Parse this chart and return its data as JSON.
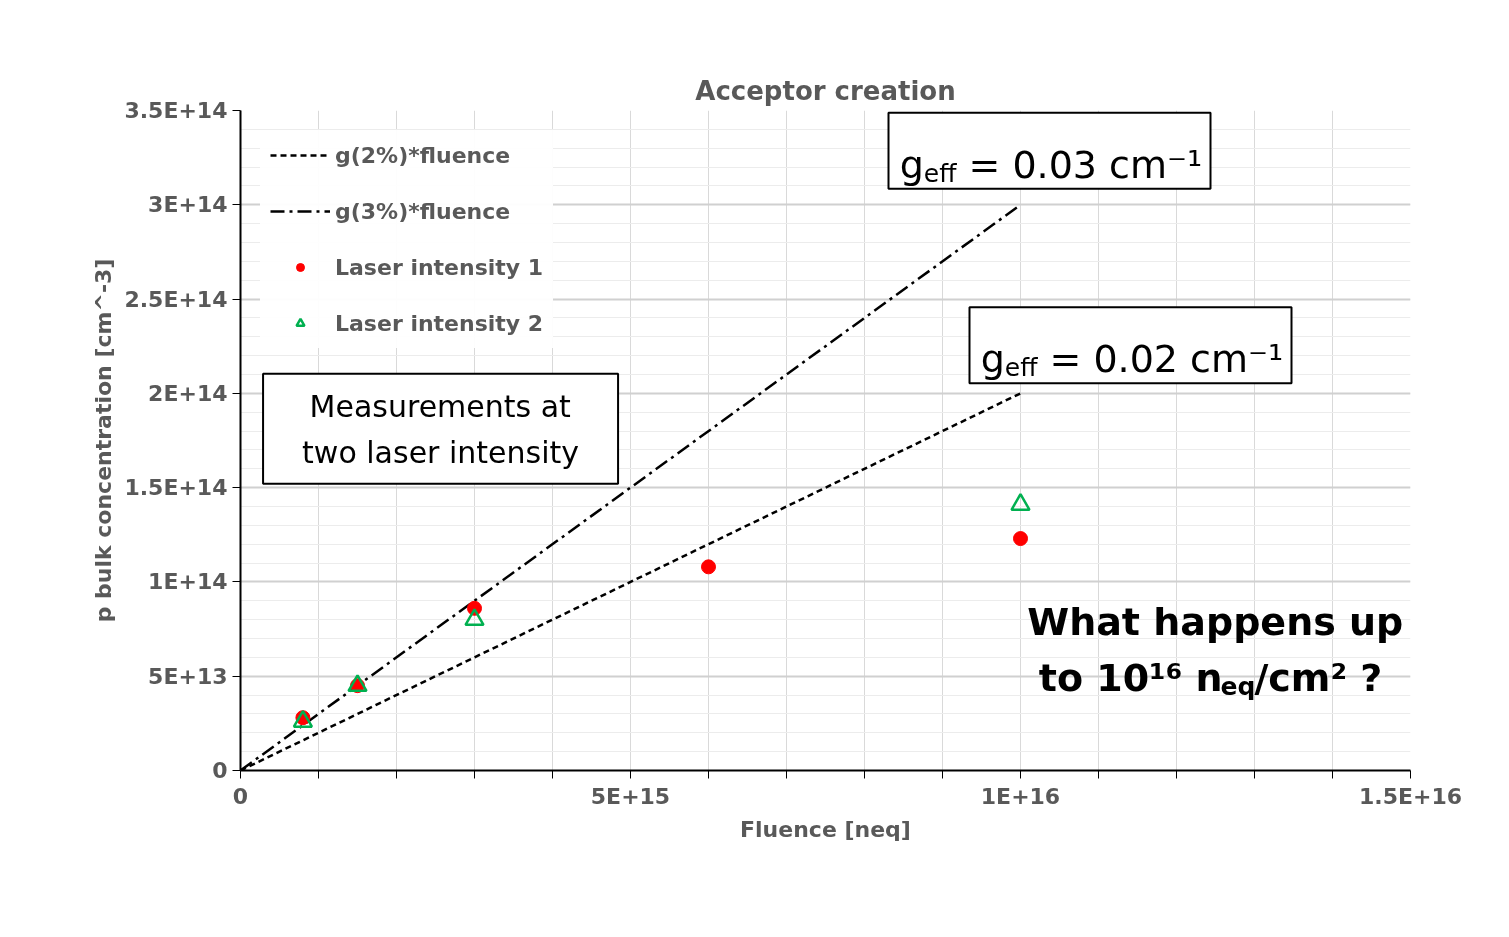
{
  "chart_data": {
    "type": "scatter",
    "title": "Acceptor creation",
    "xlabel": "Fluence [neq]",
    "ylabel": "p bulk concentration [cm^-3]",
    "xlim": [
      0,
      1.5e+16
    ],
    "ylim": [
      0,
      350000000000000.0
    ],
    "xticks": [
      0,
      {
        "value": 1000000000000000.0,
        "label": null
      },
      {
        "value": 2000000000000000.0,
        "label": null
      },
      {
        "value": 3000000000000000.0,
        "label": null
      },
      {
        "value": 4000000000000000.0,
        "label": null
      },
      {
        "value": 5000000000000000.0,
        "label": "5E+15"
      },
      {
        "value": 6000000000000000.0,
        "label": null
      },
      {
        "value": 7000000000000000.0,
        "label": null
      },
      {
        "value": 8000000000000000.0,
        "label": null
      },
      {
        "value": 9000000000000000.0,
        "label": null
      },
      {
        "value": 1e+16,
        "label": "1E+16"
      },
      {
        "value": 1.1e+16,
        "label": null
      },
      {
        "value": 1.2e+16,
        "label": null
      },
      {
        "value": 1.3e+16,
        "label": null
      },
      {
        "value": 1.4e+16,
        "label": null
      },
      {
        "value": 1.5e+16,
        "label": "1.5E+16"
      }
    ],
    "yticks": [
      0,
      {
        "value": 50000000000000.0,
        "label": "5E+13"
      },
      {
        "value": 100000000000000.0,
        "label": "1E+14"
      },
      {
        "value": 150000000000000.0,
        "label": "1.5E+14"
      },
      {
        "value": 200000000000000.0,
        "label": "2E+14"
      },
      {
        "value": 250000000000000.0,
        "label": "2.5E+14"
      },
      {
        "value": 300000000000000.0,
        "label": "3E+14"
      },
      {
        "value": 350000000000000.0,
        "label": "3.5E+14"
      }
    ],
    "grid": true,
    "legend": "top left",
    "series": [
      {
        "name": "g(2%)*fluence",
        "type": "line",
        "color": "#000000",
        "line_style": "dashed",
        "x": [
          0,
          1e+16
        ],
        "values": [
          0,
          200000000000000.0
        ]
      },
      {
        "name": "g(3%)*fluence",
        "type": "line",
        "color": "#000000",
        "line_style": "dashdot",
        "x": [
          0,
          1e+16
        ],
        "values": [
          0,
          300000000000000.0
        ]
      },
      {
        "name": "Laser intensity 1",
        "color": "#ff0000",
        "marker": "circle",
        "x": [
          800000000000000.0,
          1500000000000000.0,
          3000000000000000.0,
          6000000000000000.0,
          1e+16
        ],
        "values": [
          28000000000000.0,
          45000000000000.0,
          86000000000000.0,
          108000000000000.0,
          123000000000000.0
        ]
      },
      {
        "name": "Laser intensity 2",
        "color": "#00b050",
        "marker": "triangle",
        "x": [
          800000000000000.0,
          1500000000000000.0,
          3000000000000000.0,
          1e+16
        ],
        "values": [
          26000000000000.0,
          45000000000000.0,
          80000000000000.0,
          141000000000000.0
        ]
      }
    ],
    "annotations": [
      {
        "text": "g$_{eff}$ = 0.03 cm⁻¹",
        "x": 1e+16,
        "y": 300000000000000.0
      },
      {
        "text": "g$_{eff}$ = 0.02 cm⁻¹",
        "x": 1e+16,
        "y": 200000000000000.0
      },
      "Measurements at\ntwo laser intensity",
      "What happens up\nto 10¹⁶ n$_{eq}$/cm² ?"
    ]
  }
}
